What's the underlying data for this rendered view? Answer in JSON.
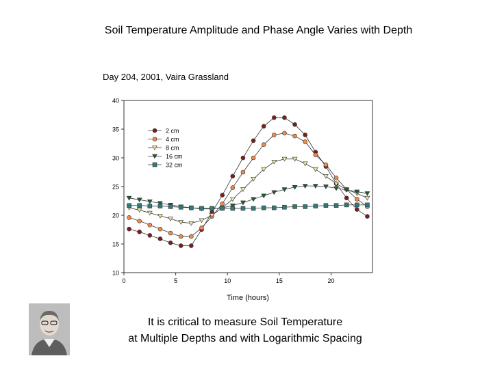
{
  "slide": {
    "title": "Soil Temperature Amplitude and Phase Angle Varies with Depth",
    "caption_line1": "It is critical to measure Soil Temperature",
    "caption_line2": "at Multiple Depths and with Logarithmic Spacing"
  },
  "chart_data": {
    "type": "line",
    "title": "Day 204, 2001, Vaira Grassland",
    "xlabel": "Time (hours)",
    "ylabel": "",
    "xlim": [
      0,
      24
    ],
    "ylim": [
      10,
      40
    ],
    "xticks": [
      0,
      5,
      10,
      15,
      20
    ],
    "yticks": [
      10,
      15,
      20,
      25,
      30,
      35,
      40
    ],
    "grid": false,
    "legend_position": "upper-left",
    "x": [
      0.5,
      1.5,
      2.5,
      3.5,
      4.5,
      5.5,
      6.5,
      7.5,
      8.5,
      9.5,
      10.5,
      11.5,
      12.5,
      13.5,
      14.5,
      15.5,
      16.5,
      17.5,
      18.5,
      19.5,
      20.5,
      21.5,
      22.5,
      23.5
    ],
    "series": [
      {
        "name": "2 cm",
        "color": "#7a1e1e",
        "marker": "circle",
        "values": [
          17.6,
          17.1,
          16.5,
          15.9,
          15.2,
          14.7,
          14.7,
          17.5,
          20.5,
          23.5,
          26.8,
          30.0,
          33.0,
          35.5,
          37.0,
          37.0,
          35.8,
          34.0,
          31.0,
          28.5,
          25.5,
          23.0,
          21.0,
          19.8
        ]
      },
      {
        "name": "4 cm",
        "color": "#f08a4b",
        "marker": "circle",
        "values": [
          19.6,
          19.0,
          18.3,
          17.6,
          16.9,
          16.3,
          16.3,
          17.8,
          19.8,
          22.0,
          24.8,
          27.5,
          30.0,
          32.3,
          34.0,
          34.3,
          33.8,
          32.8,
          30.5,
          28.8,
          26.5,
          24.5,
          22.8,
          21.5
        ]
      },
      {
        "name": "8 cm",
        "color": "#e8e6a0",
        "marker": "triangle-down",
        "values": [
          21.3,
          20.9,
          20.4,
          19.9,
          19.4,
          18.8,
          18.6,
          19.1,
          20.0,
          21.3,
          22.8,
          24.5,
          26.3,
          28.0,
          29.3,
          29.8,
          29.8,
          29.0,
          28.0,
          26.8,
          25.5,
          24.5,
          23.8,
          23.0
        ]
      },
      {
        "name": "16 cm",
        "color": "#1f5a30",
        "marker": "triangle-down",
        "values": [
          23.0,
          22.7,
          22.4,
          22.1,
          21.8,
          21.5,
          21.3,
          21.1,
          21.1,
          21.3,
          21.7,
          22.2,
          22.8,
          23.4,
          24.0,
          24.5,
          24.9,
          25.1,
          25.1,
          25.0,
          24.7,
          24.4,
          24.1,
          23.8
        ]
      },
      {
        "name": "32 cm",
        "color": "#2e7b7a",
        "marker": "square",
        "values": [
          21.7,
          21.7,
          21.6,
          21.6,
          21.5,
          21.4,
          21.3,
          21.2,
          21.2,
          21.2,
          21.2,
          21.2,
          21.2,
          21.3,
          21.3,
          21.4,
          21.5,
          21.5,
          21.6,
          21.7,
          21.7,
          21.8,
          21.8,
          21.8
        ]
      }
    ]
  }
}
